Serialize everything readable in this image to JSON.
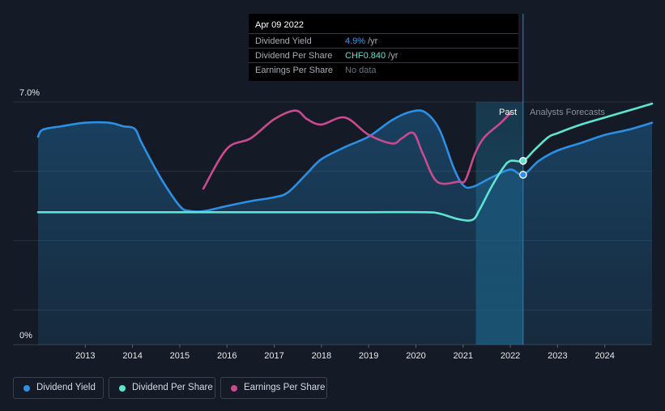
{
  "chart_data": {
    "type": "line",
    "ylabel_top": "7.0%",
    "ylabel_bottom": "0%",
    "ylim": [
      0,
      7
    ],
    "xlim": [
      2012.0,
      2025.0
    ],
    "x_ticks": [
      "2013",
      "2014",
      "2015",
      "2016",
      "2017",
      "2018",
      "2019",
      "2020",
      "2021",
      "2022",
      "2023",
      "2024"
    ],
    "regions": {
      "past_label": "Past",
      "forecast_label": "Analysts Forecasts",
      "past_start": 2021.27,
      "divider": 2022.27
    },
    "series": [
      {
        "name": "Dividend Yield",
        "color": "#2d8fe3",
        "points": [
          [
            2012.0,
            6.0
          ],
          [
            2012.1,
            6.2
          ],
          [
            2012.5,
            6.3
          ],
          [
            2013.0,
            6.4
          ],
          [
            2013.5,
            6.4
          ],
          [
            2013.8,
            6.3
          ],
          [
            2014.05,
            6.22
          ],
          [
            2014.2,
            5.8
          ],
          [
            2014.6,
            4.8
          ],
          [
            2015.0,
            4.0
          ],
          [
            2015.2,
            3.86
          ],
          [
            2015.5,
            3.85
          ],
          [
            2016.0,
            4.0
          ],
          [
            2016.5,
            4.14
          ],
          [
            2017.0,
            4.25
          ],
          [
            2017.3,
            4.4
          ],
          [
            2017.7,
            4.95
          ],
          [
            2018.0,
            5.35
          ],
          [
            2018.5,
            5.7
          ],
          [
            2019.0,
            6.0
          ],
          [
            2019.5,
            6.48
          ],
          [
            2019.9,
            6.72
          ],
          [
            2020.2,
            6.7
          ],
          [
            2020.5,
            6.2
          ],
          [
            2020.8,
            5.1
          ],
          [
            2021.0,
            4.6
          ],
          [
            2021.2,
            4.55
          ],
          [
            2021.6,
            4.82
          ],
          [
            2022.0,
            5.05
          ],
          [
            2022.27,
            4.9
          ],
          [
            2022.6,
            5.3
          ],
          [
            2023.0,
            5.6
          ],
          [
            2023.5,
            5.82
          ],
          [
            2024.0,
            6.05
          ],
          [
            2024.5,
            6.2
          ],
          [
            2025.0,
            6.4
          ]
        ]
      },
      {
        "name": "Dividend Per Share",
        "color": "#5fe3d1",
        "points": [
          [
            2012.0,
            3.82
          ],
          [
            2013.0,
            3.82
          ],
          [
            2014.0,
            3.82
          ],
          [
            2015.0,
            3.82
          ],
          [
            2016.0,
            3.82
          ],
          [
            2017.0,
            3.82
          ],
          [
            2018.0,
            3.82
          ],
          [
            2019.0,
            3.82
          ],
          [
            2020.2,
            3.82
          ],
          [
            2020.5,
            3.78
          ],
          [
            2020.9,
            3.62
          ],
          [
            2021.2,
            3.6
          ],
          [
            2021.35,
            3.9
          ],
          [
            2021.6,
            4.55
          ],
          [
            2021.85,
            5.1
          ],
          [
            2022.0,
            5.3
          ],
          [
            2022.27,
            5.3
          ],
          [
            2022.5,
            5.6
          ],
          [
            2022.8,
            5.98
          ],
          [
            2023.0,
            6.1
          ],
          [
            2023.5,
            6.35
          ],
          [
            2024.0,
            6.55
          ],
          [
            2024.5,
            6.75
          ],
          [
            2025.0,
            6.95
          ]
        ]
      },
      {
        "name": "Earnings Per Share",
        "color": "#c84b8f",
        "points": [
          [
            2015.5,
            4.5
          ],
          [
            2016.0,
            5.65
          ],
          [
            2016.5,
            5.95
          ],
          [
            2017.0,
            6.5
          ],
          [
            2017.45,
            6.75
          ],
          [
            2017.7,
            6.5
          ],
          [
            2018.0,
            6.35
          ],
          [
            2018.5,
            6.55
          ],
          [
            2019.0,
            6.05
          ],
          [
            2019.5,
            5.8
          ],
          [
            2019.7,
            5.95
          ],
          [
            2019.95,
            6.1
          ],
          [
            2020.15,
            5.5
          ],
          [
            2020.45,
            4.7
          ],
          [
            2020.9,
            4.7
          ],
          [
            2021.05,
            4.75
          ],
          [
            2021.25,
            5.5
          ],
          [
            2021.45,
            5.98
          ],
          [
            2021.8,
            6.4
          ],
          [
            2022.0,
            6.68
          ]
        ]
      }
    ],
    "marker_points": [
      {
        "series": "Dividend Yield",
        "x": 2022.27,
        "y": 4.9
      },
      {
        "series": "Dividend Per Share",
        "x": 2022.27,
        "y": 5.3
      }
    ]
  },
  "tooltip": {
    "date": "Apr 09 2022",
    "rows": [
      {
        "label": "Dividend Yield",
        "value": "4.9%",
        "unit": "/yr",
        "color": "#3d9bf2"
      },
      {
        "label": "Dividend Per Share",
        "value": "CHF0.840",
        "unit": "/yr",
        "color": "#5fe3d1"
      },
      {
        "label": "Earnings Per Share",
        "value": "No data",
        "unit": "",
        "color": "#6c737d"
      }
    ]
  },
  "legend": [
    {
      "label": "Dividend Yield",
      "color": "#2d8fe3"
    },
    {
      "label": "Dividend Per Share",
      "color": "#5fe3d1"
    },
    {
      "label": "Earnings Per Share",
      "color": "#c84b8f"
    }
  ]
}
